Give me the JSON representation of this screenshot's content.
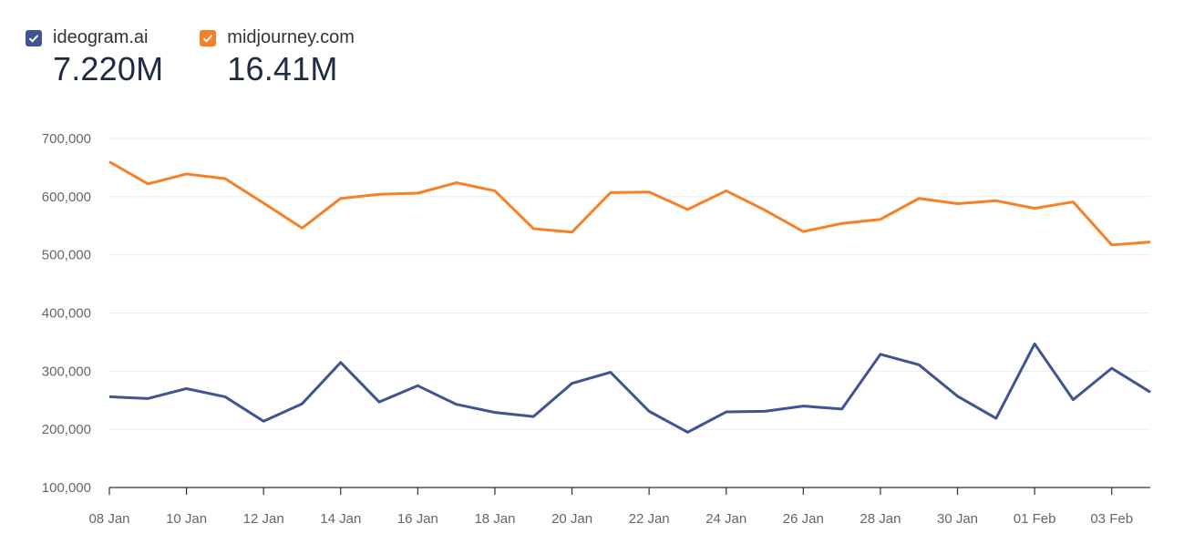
{
  "legend": [
    {
      "name": "ideogram.ai",
      "value": "7.220M",
      "color": "#3f5490"
    },
    {
      "name": "midjourney.com",
      "value": "16.41M",
      "color": "#f58025"
    }
  ],
  "chart_data": {
    "type": "line",
    "x": [
      "08 Jan",
      "09 Jan",
      "10 Jan",
      "11 Jan",
      "12 Jan",
      "13 Jan",
      "14 Jan",
      "15 Jan",
      "16 Jan",
      "17 Jan",
      "18 Jan",
      "19 Jan",
      "20 Jan",
      "21 Jan",
      "22 Jan",
      "23 Jan",
      "24 Jan",
      "25 Jan",
      "26 Jan",
      "27 Jan",
      "28 Jan",
      "29 Jan",
      "30 Jan",
      "31 Jan",
      "01 Feb",
      "02 Feb",
      "03 Feb",
      "04 Feb"
    ],
    "x_tick_labels": [
      "08 Jan",
      "10 Jan",
      "12 Jan",
      "14 Jan",
      "16 Jan",
      "18 Jan",
      "20 Jan",
      "22 Jan",
      "24 Jan",
      "26 Jan",
      "28 Jan",
      "30 Jan",
      "01 Feb",
      "03 Feb"
    ],
    "series": [
      {
        "name": "ideogram.ai",
        "color": "#3f5490",
        "values": [
          256000,
          253000,
          270000,
          256000,
          214000,
          244000,
          315000,
          247000,
          275000,
          243000,
          229000,
          222000,
          279000,
          298000,
          231000,
          195000,
          230000,
          231000,
          240000,
          235000,
          329000,
          311000,
          257000,
          219000,
          347000,
          251000,
          305000,
          264000
        ]
      },
      {
        "name": "midjourney.com",
        "color": "#f58025",
        "values": [
          660000,
          622000,
          639000,
          631000,
          589000,
          546000,
          597000,
          604000,
          606000,
          624000,
          610000,
          545000,
          539000,
          607000,
          608000,
          578000,
          610000,
          577000,
          540000,
          554000,
          561000,
          597000,
          588000,
          593000,
          580000,
          591000,
          517000,
          522000
        ]
      }
    ],
    "y_ticks": [
      "700,000",
      "600,000",
      "500,000",
      "400,000",
      "300,000",
      "200,000",
      "100,000"
    ],
    "y_tick_values": [
      700000,
      600000,
      500000,
      400000,
      300000,
      200000,
      100000
    ],
    "ylim": [
      100000,
      700000
    ],
    "grid": true,
    "legend_position": "top-left"
  }
}
